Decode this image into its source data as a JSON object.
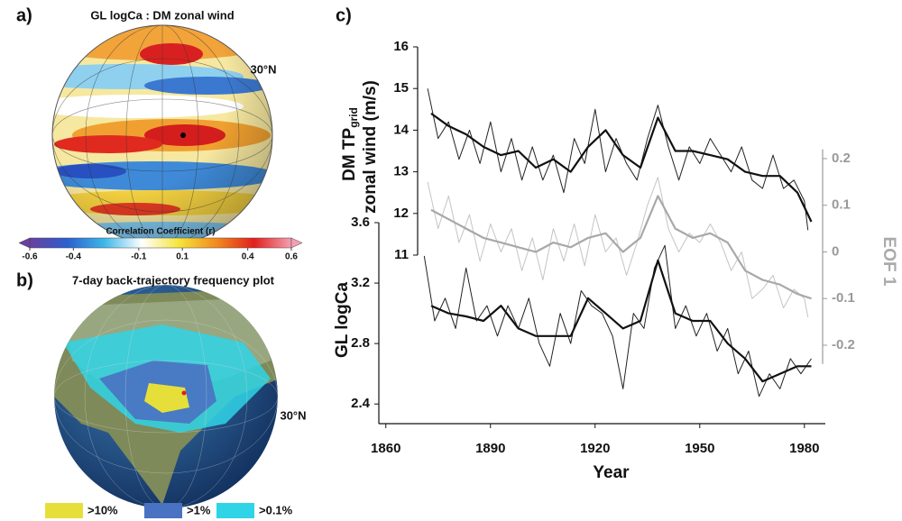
{
  "panels": {
    "a": {
      "label": "a)",
      "title": "GL logCa : DM zonal wind",
      "lat_label": "30°N"
    },
    "b": {
      "label": "b)",
      "title": "7-day back-trajectory frequency plot",
      "lat_label": "30°N",
      "legend": [
        {
          "label": ">10%",
          "color": "#e6df3a"
        },
        {
          "label": ">1%",
          "color": "#4a72c2"
        },
        {
          "label": ">0.1%",
          "color": "#2fd4e6"
        }
      ]
    },
    "c": {
      "label": "c)"
    }
  },
  "chart_data": [
    {
      "type": "colorbar",
      "title": "Correlation Coefficient (r)",
      "xlim": [
        -0.6,
        0.6
      ],
      "xticks": [
        -0.6,
        -0.4,
        -0.1,
        0.1,
        0.4,
        0.6
      ],
      "colors": [
        "#6b3fa0",
        "#2b5fcf",
        "#3fb8e8",
        "#ffffff",
        "#f5e43a",
        "#f28a1e",
        "#e0201e",
        "#f4a0b0"
      ]
    },
    {
      "type": "line",
      "xlabel": "Year",
      "xlim": [
        1858,
        1986
      ],
      "xticks": [
        1860,
        1890,
        1920,
        1950,
        1980
      ],
      "ylabel_lines": [
        "DM TP",
        "zonal wind (m/s)"
      ],
      "ylabel_subscript": "grid",
      "ylim": [
        11,
        16
      ],
      "yticks": [
        11,
        12,
        13,
        14,
        15,
        16
      ],
      "y2label": "EOF 1",
      "y2lim": [
        -0.24,
        0.22
      ],
      "y2ticks": [
        -0.2,
        -0.1,
        0,
        0.1,
        0.2
      ],
      "y3label": "GL logCa",
      "y3lim": [
        2.27,
        3.6
      ],
      "y3ticks": [
        2.4,
        2.8,
        3.2,
        3.6
      ],
      "series": [
        {
          "axis": "y",
          "color": "#222222",
          "width": 1,
          "x": [
            1872,
            1875,
            1878,
            1881,
            1884,
            1887,
            1890,
            1893,
            1896,
            1899,
            1902,
            1905,
            1908,
            1911,
            1914,
            1917,
            1920,
            1923,
            1926,
            1929,
            1932,
            1935,
            1938,
            1941,
            1944,
            1947,
            1950,
            1953,
            1956,
            1959,
            1962,
            1965,
            1968,
            1971,
            1974,
            1977,
            1980,
            1981
          ],
          "values": [
            15.0,
            13.8,
            14.2,
            13.3,
            14.0,
            13.2,
            14.2,
            13.0,
            13.8,
            12.8,
            13.6,
            12.8,
            13.4,
            12.5,
            13.8,
            13.2,
            14.5,
            13.0,
            13.8,
            13.2,
            12.8,
            13.8,
            14.6,
            13.6,
            12.8,
            13.6,
            13.2,
            13.8,
            13.4,
            13.0,
            13.6,
            12.8,
            12.6,
            13.4,
            12.6,
            12.8,
            12.3,
            11.6
          ]
        },
        {
          "axis": "y",
          "color": "#111111",
          "width": 2.2,
          "x": [
            1873,
            1878,
            1883,
            1888,
            1893,
            1898,
            1903,
            1908,
            1913,
            1918,
            1923,
            1928,
            1933,
            1938,
            1943,
            1948,
            1953,
            1958,
            1963,
            1968,
            1973,
            1978,
            1982
          ],
          "values": [
            14.4,
            14.1,
            13.9,
            13.6,
            13.4,
            13.5,
            13.1,
            13.3,
            13.0,
            13.6,
            14.0,
            13.4,
            13.1,
            14.3,
            13.5,
            13.5,
            13.4,
            13.3,
            13.0,
            12.9,
            12.9,
            12.5,
            11.8
          ]
        },
        {
          "axis": "y2",
          "color": "#c4c4c4",
          "width": 1,
          "x": [
            1872,
            1875,
            1878,
            1881,
            1884,
            1887,
            1890,
            1893,
            1896,
            1899,
            1902,
            1905,
            1908,
            1911,
            1914,
            1917,
            1920,
            1923,
            1926,
            1929,
            1932,
            1935,
            1938,
            1941,
            1944,
            1947,
            1950,
            1953,
            1956,
            1959,
            1962,
            1965,
            1968,
            1971,
            1974,
            1977,
            1980,
            1981
          ],
          "values": [
            0.15,
            0.05,
            0.12,
            0.02,
            0.08,
            -0.02,
            0.06,
            0.0,
            0.05,
            -0.04,
            0.03,
            -0.06,
            0.05,
            -0.02,
            0.06,
            -0.03,
            0.08,
            0.0,
            0.03,
            -0.05,
            0.02,
            0.1,
            0.16,
            0.05,
            0.0,
            0.04,
            0.02,
            0.06,
            0.02,
            -0.04,
            0.0,
            -0.1,
            -0.08,
            -0.05,
            -0.12,
            -0.08,
            -0.1,
            -0.14
          ]
        },
        {
          "axis": "y2",
          "color": "#a8a8a8",
          "width": 2.2,
          "x": [
            1873,
            1878,
            1883,
            1888,
            1893,
            1898,
            1903,
            1908,
            1913,
            1918,
            1923,
            1928,
            1933,
            1938,
            1943,
            1948,
            1953,
            1958,
            1963,
            1968,
            1973,
            1978,
            1982
          ],
          "values": [
            0.09,
            0.07,
            0.05,
            0.03,
            0.02,
            0.01,
            0.0,
            0.02,
            0.01,
            0.03,
            0.04,
            0.0,
            0.03,
            0.12,
            0.05,
            0.03,
            0.04,
            0.02,
            -0.04,
            -0.06,
            -0.07,
            -0.09,
            -0.1
          ]
        },
        {
          "axis": "y3",
          "color": "#222222",
          "width": 1,
          "x": [
            1871,
            1874,
            1877,
            1880,
            1883,
            1886,
            1889,
            1892,
            1895,
            1898,
            1901,
            1904,
            1907,
            1910,
            1913,
            1916,
            1919,
            1922,
            1925,
            1928,
            1931,
            1934,
            1937,
            1940,
            1943,
            1946,
            1949,
            1952,
            1955,
            1958,
            1961,
            1964,
            1967,
            1970,
            1973,
            1976,
            1979,
            1982
          ],
          "values": [
            3.38,
            2.95,
            3.1,
            2.9,
            3.3,
            2.95,
            3.05,
            2.85,
            3.05,
            2.9,
            3.1,
            2.8,
            2.65,
            3.0,
            2.8,
            3.15,
            3.05,
            3.0,
            2.85,
            2.5,
            3.0,
            2.9,
            3.3,
            3.45,
            2.9,
            3.05,
            2.85,
            3.0,
            2.75,
            2.9,
            2.6,
            2.75,
            2.45,
            2.6,
            2.5,
            2.7,
            2.6,
            2.7
          ]
        },
        {
          "axis": "y3",
          "color": "#111111",
          "width": 2.2,
          "x": [
            1873,
            1878,
            1883,
            1888,
            1893,
            1898,
            1903,
            1908,
            1913,
            1918,
            1923,
            1928,
            1933,
            1938,
            1943,
            1948,
            1953,
            1958,
            1963,
            1968,
            1973,
            1978,
            1982
          ],
          "values": [
            3.05,
            3.0,
            2.98,
            2.95,
            3.05,
            2.9,
            2.85,
            2.85,
            2.85,
            3.1,
            3.0,
            2.9,
            2.95,
            3.35,
            3.0,
            2.95,
            2.95,
            2.8,
            2.7,
            2.55,
            2.6,
            2.65,
            2.65
          ]
        }
      ]
    }
  ]
}
